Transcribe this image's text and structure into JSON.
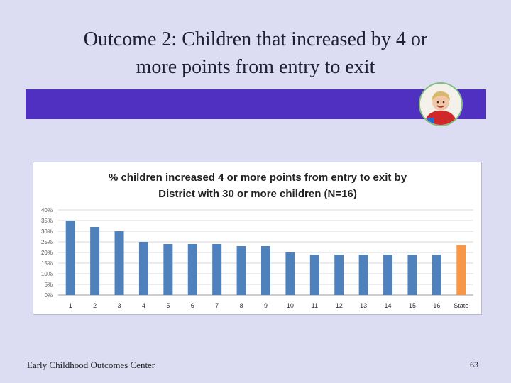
{
  "slide": {
    "title_line1": "Outcome 2:  Children that increased by 4 or",
    "title_line2": "more points from entry to exit",
    "footer": "Early Childhood Outcomes Center",
    "page_number": "63"
  },
  "colors": {
    "band": "#5030c0",
    "bar_district": "#4f81bd",
    "bar_state": "#f79646"
  },
  "chart_data": {
    "type": "bar",
    "title_line1": "% children increased 4 or more points from entry to exit by",
    "title_line2": "District with 30 or more children (N=16)",
    "categories": [
      "1",
      "2",
      "3",
      "4",
      "5",
      "6",
      "7",
      "8",
      "9",
      "10",
      "11",
      "12",
      "13",
      "14",
      "15",
      "16",
      "State"
    ],
    "values": [
      35,
      32,
      30,
      25,
      24,
      24,
      24,
      23,
      23,
      20,
      19,
      19,
      19,
      19,
      19,
      19,
      23.5
    ],
    "highlight_category": "State",
    "ylim": [
      0,
      40
    ],
    "yticks": [
      "0%",
      "5%",
      "10%",
      "15%",
      "20%",
      "25%",
      "30%",
      "35%",
      "40%"
    ],
    "ytick_values": [
      0,
      5,
      10,
      15,
      20,
      25,
      30,
      35,
      40
    ],
    "grid": true,
    "xlabel": "",
    "ylabel": ""
  }
}
